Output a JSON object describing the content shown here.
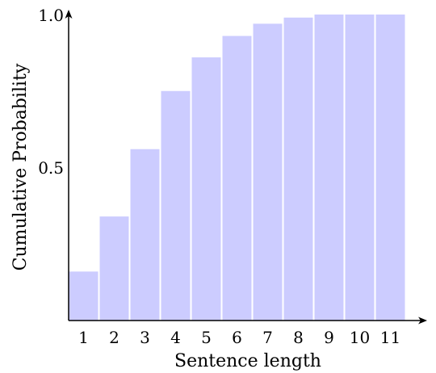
{
  "chart_data": {
    "type": "bar",
    "title": "",
    "xlabel": "Sentence length",
    "ylabel": "Cumulative Probability",
    "categories": [
      "1",
      "2",
      "3",
      "4",
      "5",
      "6",
      "7",
      "8",
      "9",
      "10",
      "11"
    ],
    "values": [
      0.16,
      0.34,
      0.56,
      0.75,
      0.86,
      0.93,
      0.97,
      0.99,
      1.0,
      1.0,
      1.0
    ],
    "ylim": [
      0,
      1.0
    ],
    "yticks": [
      "0.5",
      "1.0"
    ],
    "grid": false,
    "bar_color": "#ccccff"
  }
}
